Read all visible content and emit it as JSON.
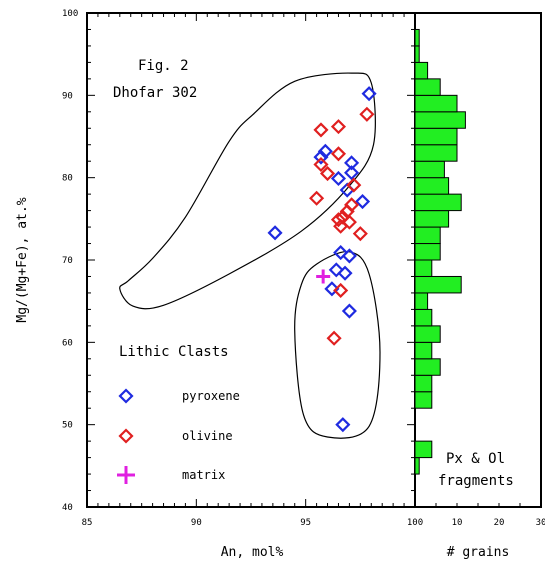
{
  "chart_data": {
    "type": "scatter",
    "annotation": [
      "Fig. 2",
      "Dhofar 302"
    ],
    "xlabel": "An, mol%",
    "ylabel": "Mg/(Mg+Fe), at.%",
    "xlim": [
      85,
      100
    ],
    "ylim": [
      40,
      100
    ],
    "xticks": [
      "85",
      "90",
      "95",
      "100"
    ],
    "yticks": [
      "40",
      "50",
      "60",
      "70",
      "80",
      "90",
      "100"
    ],
    "legend_title": "Lithic Clasts",
    "legend_position": "bottom-left",
    "series": [
      {
        "name": "pyroxene",
        "marker": "diamond",
        "color": "#1f2be0",
        "points": [
          [
            97.9,
            90.2
          ],
          [
            95.9,
            83.2
          ],
          [
            95.7,
            82.5
          ],
          [
            97.1,
            81.8
          ],
          [
            97.1,
            80.6
          ],
          [
            96.5,
            79.9
          ],
          [
            96.9,
            78.5
          ],
          [
            97.6,
            77.1
          ],
          [
            93.6,
            73.3
          ],
          [
            96.6,
            70.9
          ],
          [
            97.0,
            70.5
          ],
          [
            96.4,
            68.8
          ],
          [
            96.8,
            68.4
          ],
          [
            96.2,
            66.5
          ],
          [
            97.0,
            63.8
          ],
          [
            96.7,
            50.0
          ]
        ]
      },
      {
        "name": "olivine",
        "marker": "diamond",
        "color": "#e02020",
        "points": [
          [
            97.8,
            87.7
          ],
          [
            95.7,
            85.8
          ],
          [
            96.5,
            86.2
          ],
          [
            96.5,
            82.9
          ],
          [
            95.7,
            81.6
          ],
          [
            96.0,
            80.5
          ],
          [
            97.2,
            79.1
          ],
          [
            95.5,
            77.5
          ],
          [
            97.1,
            76.7
          ],
          [
            96.9,
            75.9
          ],
          [
            96.5,
            74.9
          ],
          [
            96.7,
            75.2
          ],
          [
            97.0,
            74.6
          ],
          [
            96.6,
            74.1
          ],
          [
            97.5,
            73.2
          ],
          [
            96.6,
            66.3
          ],
          [
            96.3,
            60.5
          ]
        ]
      },
      {
        "name": "matrix",
        "marker": "plus",
        "color": "#e020e0",
        "points": [
          [
            95.8,
            68.0
          ]
        ]
      }
    ],
    "fields": [
      {
        "points": [
          [
            86.9,
            67.5
          ],
          [
            86.5,
            66.5
          ],
          [
            87.1,
            64.4
          ],
          [
            88.5,
            64.5
          ],
          [
            91.5,
            68.3
          ],
          [
            94.8,
            73.5
          ],
          [
            97.0,
            79.0
          ],
          [
            98.1,
            84.0
          ],
          [
            98.0,
            91.5
          ],
          [
            97.1,
            92.7
          ],
          [
            94.5,
            91.7
          ],
          [
            92.6,
            87.7
          ],
          [
            91.5,
            84.4
          ],
          [
            89.5,
            75.2
          ],
          [
            88.0,
            70.2
          ]
        ]
      },
      {
        "points": [
          [
            95.5,
            69.5
          ],
          [
            97.0,
            71.0
          ],
          [
            97.9,
            68.3
          ],
          [
            98.4,
            58.8
          ],
          [
            97.9,
            49.8
          ],
          [
            96.0,
            48.5
          ],
          [
            94.9,
            51.2
          ],
          [
            94.5,
            61.5
          ],
          [
            94.8,
            67.0
          ]
        ]
      }
    ],
    "histogram": {
      "annotation": [
        "Px & Ol",
        "fragments"
      ],
      "xlabel": "# grains",
      "xlim": [
        0,
        30
      ],
      "xticks": [
        "10",
        "20",
        "30"
      ],
      "origin_label": "100",
      "bin_edges": [
        42,
        44,
        46,
        48,
        50,
        52,
        54,
        56,
        58,
        60,
        62,
        64,
        66,
        68,
        70,
        72,
        74,
        76,
        78,
        80,
        82,
        84,
        86,
        88,
        90,
        92,
        94,
        96,
        98
      ],
      "counts": [
        0,
        1,
        4,
        0,
        0,
        4,
        4,
        6,
        4,
        6,
        4,
        3,
        11,
        4,
        6,
        6,
        8,
        11,
        8,
        7,
        10,
        10,
        12,
        10,
        6,
        3,
        1,
        1
      ]
    }
  }
}
